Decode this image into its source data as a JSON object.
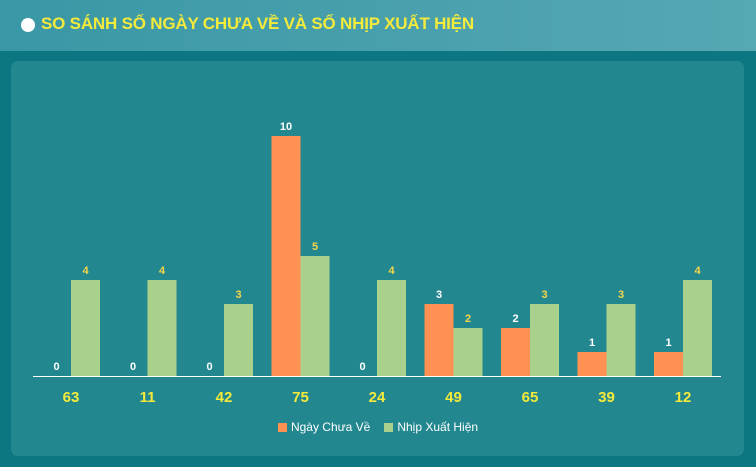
{
  "header": {
    "title": "SO SÁNH SỐ NGÀY CHƯA VỀ VÀ SỐ NHỊP XUẤT HIỆN"
  },
  "colors": {
    "series1": "#ff9152",
    "series2": "#aad18b",
    "label1": "#ffffff",
    "label2": "#f5d54a",
    "category": "#f3ea3c"
  },
  "chart_data": {
    "type": "bar",
    "title": "SO SÁNH SỐ NGÀY CHƯA VỀ VÀ SỐ NHỊP XUẤT HIỆN",
    "xlabel": "",
    "ylabel": "",
    "categories": [
      "63",
      "11",
      "42",
      "75",
      "24",
      "49",
      "65",
      "39",
      "12"
    ],
    "series": [
      {
        "name": "Ngày Chưa Về",
        "values": [
          0,
          0,
          0,
          10,
          0,
          3,
          2,
          1,
          1
        ]
      },
      {
        "name": "Nhịp Xuất Hiện",
        "values": [
          4,
          4,
          3,
          5,
          4,
          2,
          3,
          3,
          4
        ]
      }
    ],
    "ylim": [
      0,
      10
    ],
    "grid": false,
    "legend": "bottom"
  }
}
